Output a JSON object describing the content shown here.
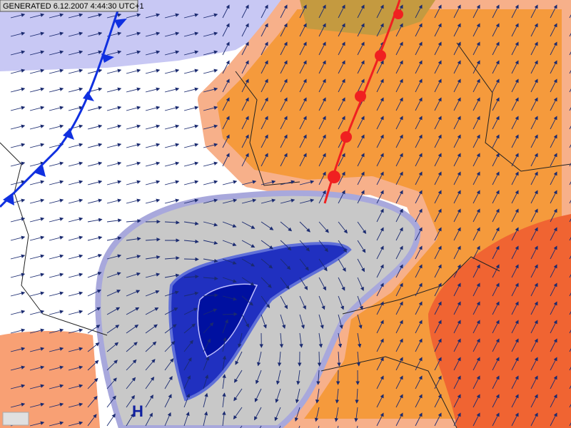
{
  "header": {
    "generated": "GENERATED 6.12.2007 4:44:30 UTC+1"
  },
  "map": {
    "pressure_label": "H"
  }
}
